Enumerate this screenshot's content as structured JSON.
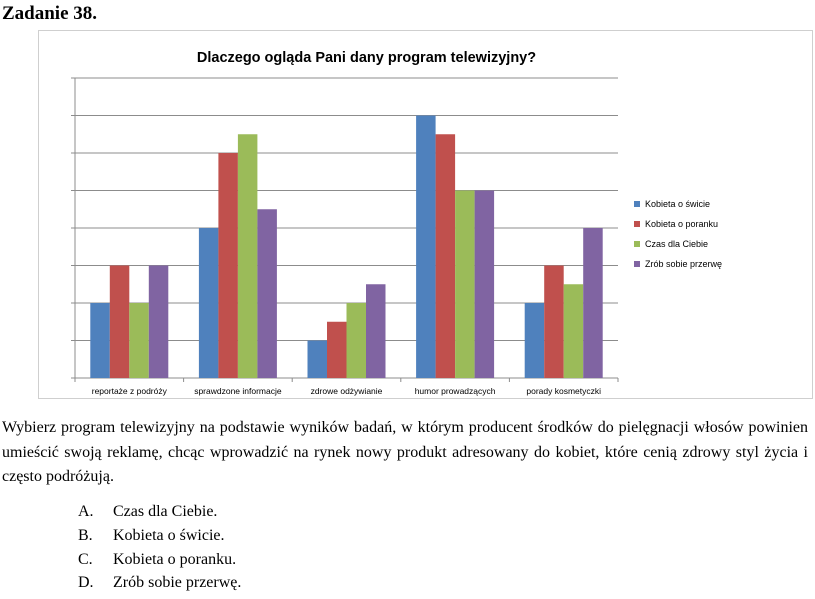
{
  "task": {
    "title": "Zadanie 38."
  },
  "chart_data": {
    "type": "bar",
    "title": "Dlaczego ogląda Pani dany program telewizyjny?",
    "categories": [
      "reportaże z podróży",
      "sprawdzone informacje",
      "zdrowe odżywianie",
      "humor prowadzących",
      "porady kosmetyczki"
    ],
    "series": [
      {
        "name": "Kobieta o świcie",
        "values": [
          2,
          4,
          1,
          7,
          2
        ]
      },
      {
        "name": "Kobieta o poranku",
        "values": [
          3,
          6,
          1.5,
          6.5,
          3
        ]
      },
      {
        "name": "Czas dla Ciebie",
        "values": [
          2,
          6.5,
          2,
          5,
          2.5
        ]
      },
      {
        "name": "Zrób sobie przerwę",
        "values": [
          3,
          4.5,
          2.5,
          5,
          4
        ]
      }
    ],
    "ylim": [
      0,
      8
    ],
    "grid": true,
    "legend": "right",
    "colors": [
      "#4f81bd",
      "#c0504d",
      "#9bbb59",
      "#8064a2"
    ]
  },
  "question": {
    "text": "Wybierz program telewizyjny na podstawie wyników badań, w którym  producent środków do pielęgnacji włosów powinien umieścić swoją reklamę, chcąc wprowadzić na rynek nowy produkt adresowany do kobiet, które cenią zdrowy styl życia i często podróżują."
  },
  "answers": [
    {
      "letter": "A.",
      "text": "Czas dla Ciebie."
    },
    {
      "letter": "B.",
      "text": "Kobieta o świcie."
    },
    {
      "letter": "C.",
      "text": "Kobieta o poranku."
    },
    {
      "letter": "D.",
      "text": "Zrób sobie przerwę."
    }
  ]
}
